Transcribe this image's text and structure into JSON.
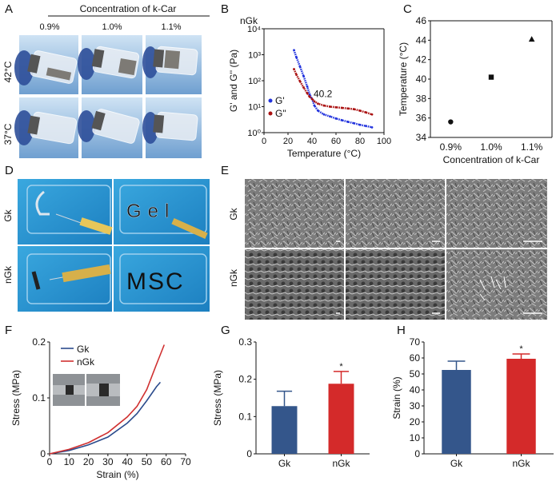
{
  "panels": {
    "A": {
      "letter": "A",
      "title": "Concentration of k-Car",
      "columns": [
        "0.9%",
        "1.0%",
        "1.1%"
      ],
      "rows": [
        "42°C",
        "37°C"
      ]
    },
    "B": {
      "letter": "B"
    },
    "C": {
      "letter": "C"
    },
    "D": {
      "letter": "D",
      "rows": [
        "Gk",
        "nGk"
      ],
      "writing": [
        "Gel",
        "MSC"
      ]
    },
    "E": {
      "letter": "E",
      "rows": [
        "Gk",
        "nGk"
      ]
    },
    "F": {
      "letter": "F"
    },
    "G": {
      "letter": "G"
    },
    "H": {
      "letter": "H"
    }
  },
  "chart_data": [
    {
      "id": "B",
      "type": "scatter",
      "title": "nGk",
      "xlabel": "Temperature (°C)",
      "ylabel": "G' and G'' (Pa)",
      "xlim": [
        0,
        100
      ],
      "ylim": [
        1,
        10000
      ],
      "yscale": "log",
      "xticks": [
        "0",
        "20",
        "40",
        "60",
        "80",
        "100"
      ],
      "yticks": [
        "10⁰",
        "10¹",
        "10²",
        "10³",
        "10⁴"
      ],
      "annotation": "40.2",
      "legend": "bottom-left",
      "series": [
        {
          "name": "G'",
          "color": "#2233dd",
          "x": [
            25,
            27,
            30,
            33,
            36,
            38,
            40,
            42,
            45,
            50,
            55,
            60,
            65,
            70,
            75,
            80,
            85,
            90
          ],
          "y": [
            1500,
            800,
            350,
            150,
            60,
            30,
            20,
            11,
            7,
            5,
            4.2,
            3.5,
            3.0,
            2.6,
            2.3,
            2.0,
            1.8,
            1.6
          ]
        },
        {
          "name": "G\"",
          "color": "#aa1111",
          "x": [
            25,
            27,
            30,
            33,
            36,
            38,
            40,
            42,
            45,
            50,
            55,
            60,
            65,
            70,
            75,
            80,
            85,
            90
          ],
          "y": [
            280,
            170,
            95,
            55,
            33,
            24,
            20,
            16,
            13,
            11,
            10,
            9.5,
            9,
            8.5,
            8,
            7,
            6,
            5
          ]
        }
      ]
    },
    {
      "id": "C",
      "type": "scatter",
      "xlabel": "Concentration of k-Car",
      "ylabel": "Temperature (°C)",
      "categories": [
        "0.9%",
        "1.0%",
        "1.1%"
      ],
      "values": [
        35.6,
        40.2,
        44.1
      ],
      "ylim": [
        34,
        46
      ],
      "yticks": [
        "34",
        "36",
        "38",
        "40",
        "42",
        "44",
        "46"
      ]
    },
    {
      "id": "F",
      "type": "line",
      "xlabel": "Strain (%)",
      "ylabel": "Stress (MPa)",
      "xlim": [
        0,
        70
      ],
      "ylim": [
        0,
        0.2
      ],
      "xticks": [
        "0",
        "10",
        "20",
        "30",
        "40",
        "50",
        "60",
        "70"
      ],
      "yticks": [
        "0",
        "0.1",
        "0.2"
      ],
      "legend": "top-left",
      "series": [
        {
          "name": "Gk",
          "color": "#2b4b8c",
          "x": [
            0,
            10,
            20,
            30,
            40,
            45,
            50,
            55,
            57
          ],
          "y": [
            0,
            0.006,
            0.016,
            0.03,
            0.055,
            0.072,
            0.095,
            0.12,
            0.128
          ]
        },
        {
          "name": "nGk",
          "color": "#d03030",
          "x": [
            0,
            10,
            20,
            30,
            40,
            45,
            50,
            55,
            59
          ],
          "y": [
            0,
            0.008,
            0.02,
            0.038,
            0.066,
            0.085,
            0.115,
            0.16,
            0.195
          ]
        }
      ]
    },
    {
      "id": "G",
      "type": "bar",
      "ylabel": "Stress (MPa)",
      "categories": [
        "Gk",
        "nGk"
      ],
      "values": [
        0.128,
        0.188
      ],
      "errors": [
        0.04,
        0.033
      ],
      "ylim": [
        0,
        0.3
      ],
      "yticks": [
        "0",
        "0.1",
        "0.2",
        "0.3"
      ],
      "significance": [
        "",
        "*"
      ],
      "colors": [
        "#34568b",
        "#d42a2a"
      ]
    },
    {
      "id": "H",
      "type": "bar",
      "ylabel": "Strain (%)",
      "categories": [
        "Gk",
        "nGk"
      ],
      "values": [
        52.5,
        59.5
      ],
      "errors": [
        5.5,
        3
      ],
      "ylim": [
        0,
        70
      ],
      "yticks": [
        "0",
        "10",
        "20",
        "30",
        "40",
        "50",
        "60",
        "70"
      ],
      "significance": [
        "",
        "*"
      ],
      "colors": [
        "#34568b",
        "#d42a2a"
      ]
    }
  ]
}
